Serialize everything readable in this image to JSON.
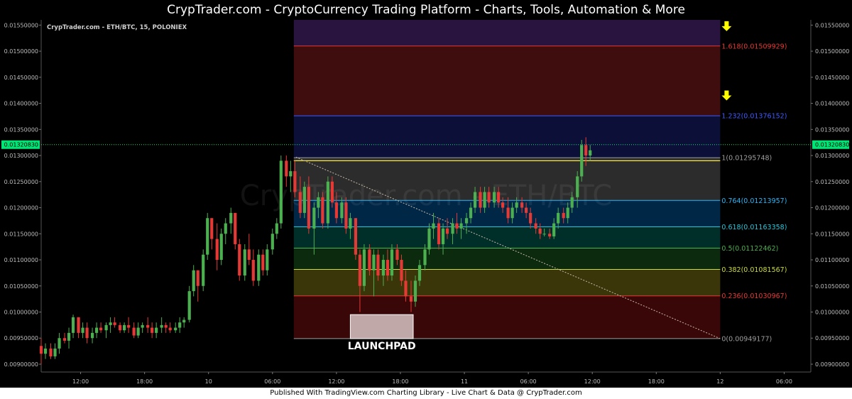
{
  "header": {
    "title": "CrypTrader.com  -  CryptoCurrency Trading Platform  -  Charts, Tools, Automation & More"
  },
  "footer": {
    "text": "Published With TradingView.com Charting Library - Live Chart & Data @ CrypTrader.com"
  },
  "colors": {
    "up": "#4caf50",
    "down": "#e53935",
    "accent": "#ffff00",
    "price_line": "#00e676"
  },
  "chart_data": {
    "type": "candlestick",
    "symbol_info": "CrypTrader.com - ETH/BTC, 15, POLONIEX",
    "watermark": "CrypTrader.com - ETH/BTC",
    "y_ticks": [
      "0.01550000",
      "0.01500000",
      "0.01450000",
      "0.01400000",
      "0.01350000",
      "0.01300000",
      "0.01250000",
      "0.01200000",
      "0.01150000",
      "0.01100000",
      "0.01050000",
      "0.01000000",
      "0.00950000",
      "0.00900000"
    ],
    "y_tick_values": [
      0.0155,
      0.015,
      0.0145,
      0.014,
      0.0135,
      0.013,
      0.0125,
      0.012,
      0.0115,
      0.011,
      0.0105,
      0.01,
      0.0095,
      0.009
    ],
    "ylim": [
      0.00885,
      0.0156
    ],
    "x_ticks": [
      {
        "label": "12:00",
        "t": 12
      },
      {
        "label": "18:00",
        "t": 18
      },
      {
        "label": "10",
        "t": 24
      },
      {
        "label": "06:00",
        "t": 30
      },
      {
        "label": "12:00",
        "t": 36
      },
      {
        "label": "18:00",
        "t": 42
      },
      {
        "label": "11",
        "t": 48
      },
      {
        "label": "06:00",
        "t": 54
      },
      {
        "label": "12:00",
        "t": 60
      },
      {
        "label": "18:00",
        "t": 66
      },
      {
        "label": "12",
        "t": 72
      },
      {
        "label": "06:00",
        "t": 78
      }
    ],
    "xlim": [
      8.3,
      80.5
    ],
    "current_price": {
      "label": "0.01320830",
      "value": 0.0132083
    },
    "fib_levels": [
      {
        "label": "1.618(0.01509929)",
        "value": 0.01509929,
        "color": "#e53935"
      },
      {
        "label": "1.232(0.01376152)",
        "value": 0.01376152,
        "color": "#3d5afe"
      },
      {
        "label": "1(0.01295748)",
        "value": 0.01295748,
        "color": "#9e9e9e"
      },
      {
        "label": "0.764(0.01213957)",
        "value": 0.01213957,
        "color": "#29b6f6"
      },
      {
        "label": "0.618(0.01163358)",
        "value": 0.01163358,
        "color": "#26c6da"
      },
      {
        "label": "0.5(0.01122462)",
        "value": 0.01122462,
        "color": "#4caf50"
      },
      {
        "label": "0.382(0.01081567)",
        "value": 0.01081567,
        "color": "#cddc39"
      },
      {
        "label": "0.236(0.01030967)",
        "value": 0.01030967,
        "color": "#e53935"
      },
      {
        "label": "0(0.00949177)",
        "value": 0.00949177,
        "color": "#9e9e9e"
      }
    ],
    "fib_zones": [
      {
        "top": 0.0156,
        "bottom": 0.01509929,
        "color": "#5b2a8c"
      },
      {
        "top": 0.01509929,
        "bottom": 0.01376152,
        "color": "#8b1c1c"
      },
      {
        "top": 0.01376152,
        "bottom": 0.01295748,
        "color": "#1a237e"
      },
      {
        "top": 0.01295748,
        "bottom": 0.01213957,
        "color": "#616161"
      },
      {
        "top": 0.01213957,
        "bottom": 0.01163358,
        "color": "#01579b"
      },
      {
        "top": 0.01163358,
        "bottom": 0.01122462,
        "color": "#00695c"
      },
      {
        "top": 0.01122462,
        "bottom": 0.01081567,
        "color": "#1b5e20"
      },
      {
        "top": 0.01081567,
        "bottom": 0.01030967,
        "color": "#827717"
      },
      {
        "top": 0.01030967,
        "bottom": 0.00949177,
        "color": "#7f1010"
      }
    ],
    "fib_x_range": [
      32.0,
      72.0
    ],
    "extra_line": {
      "value": 0.0129,
      "color": "#ffeb3b"
    },
    "trend_line": {
      "from": [
        32.2,
        0.01297
      ],
      "to": [
        72.0,
        0.00949
      ]
    },
    "launchpad": {
      "label": "LAUNCHPAD",
      "x": [
        37.3,
        43.2
      ],
      "y": [
        0.00949,
        0.00995
      ]
    },
    "arrows": [
      {
        "t": 72.6,
        "v": 0.01548
      },
      {
        "t": 72.6,
        "v": 0.01415
      }
    ],
    "candles": [
      [
        8.3,
        0.00935,
        0.0095,
        0.009,
        0.0092
      ],
      [
        8.7,
        0.0092,
        0.0094,
        0.0091,
        0.0093
      ],
      [
        9.2,
        0.0093,
        0.0094,
        0.0091,
        0.00915
      ],
      [
        9.6,
        0.00915,
        0.0094,
        0.0091,
        0.0093
      ],
      [
        10.0,
        0.0093,
        0.0096,
        0.0092,
        0.0095
      ],
      [
        10.5,
        0.0095,
        0.0096,
        0.0094,
        0.00945
      ],
      [
        10.9,
        0.00945,
        0.0097,
        0.0093,
        0.0096
      ],
      [
        11.3,
        0.0096,
        0.00995,
        0.0095,
        0.0099
      ],
      [
        11.8,
        0.0099,
        0.0099,
        0.0095,
        0.0096
      ],
      [
        12.2,
        0.0096,
        0.0098,
        0.0095,
        0.0097
      ],
      [
        12.6,
        0.0097,
        0.0098,
        0.0094,
        0.0095
      ],
      [
        13.1,
        0.0095,
        0.0097,
        0.0094,
        0.0096
      ],
      [
        13.5,
        0.0096,
        0.0098,
        0.0095,
        0.0097
      ],
      [
        13.9,
        0.0097,
        0.0098,
        0.0096,
        0.00965
      ],
      [
        14.4,
        0.00965,
        0.0098,
        0.0095,
        0.00975
      ],
      [
        14.8,
        0.00975,
        0.0099,
        0.0096,
        0.0098
      ],
      [
        15.2,
        0.0098,
        0.0099,
        0.0097,
        0.00975
      ],
      [
        15.7,
        0.00975,
        0.0098,
        0.0096,
        0.00965
      ],
      [
        16.1,
        0.00965,
        0.0098,
        0.0096,
        0.00975
      ],
      [
        16.5,
        0.00975,
        0.0099,
        0.0096,
        0.0097
      ],
      [
        17.0,
        0.0097,
        0.0098,
        0.0095,
        0.00955
      ],
      [
        17.4,
        0.00955,
        0.0098,
        0.0095,
        0.0097
      ],
      [
        17.8,
        0.0097,
        0.0098,
        0.0096,
        0.00975
      ],
      [
        18.3,
        0.00975,
        0.0099,
        0.0096,
        0.0097
      ],
      [
        18.7,
        0.0097,
        0.0098,
        0.0095,
        0.0096
      ],
      [
        19.1,
        0.0096,
        0.0098,
        0.0095,
        0.0097
      ],
      [
        19.6,
        0.0097,
        0.0099,
        0.0096,
        0.00975
      ],
      [
        20.0,
        0.00975,
        0.0098,
        0.0096,
        0.0097
      ],
      [
        20.4,
        0.0097,
        0.0098,
        0.0096,
        0.00965
      ],
      [
        20.9,
        0.00965,
        0.0098,
        0.0096,
        0.0097
      ],
      [
        21.3,
        0.0097,
        0.0099,
        0.0096,
        0.0098
      ],
      [
        21.7,
        0.0098,
        0.0099,
        0.0097,
        0.00985
      ],
      [
        22.2,
        0.00985,
        0.0105,
        0.0098,
        0.0104
      ],
      [
        22.6,
        0.0104,
        0.0109,
        0.0103,
        0.0108
      ],
      [
        23.0,
        0.0108,
        0.0108,
        0.0102,
        0.0105
      ],
      [
        23.5,
        0.0105,
        0.0112,
        0.0104,
        0.0111
      ],
      [
        23.9,
        0.0111,
        0.0119,
        0.011,
        0.0118
      ],
      [
        24.3,
        0.0118,
        0.0118,
        0.0112,
        0.0114
      ],
      [
        24.8,
        0.0114,
        0.0117,
        0.0108,
        0.011
      ],
      [
        25.2,
        0.011,
        0.0116,
        0.0109,
        0.0115
      ],
      [
        25.6,
        0.0115,
        0.0118,
        0.0113,
        0.0117
      ],
      [
        26.1,
        0.0117,
        0.012,
        0.0115,
        0.0119
      ],
      [
        26.5,
        0.0119,
        0.0119,
        0.0112,
        0.0113
      ],
      [
        26.9,
        0.0113,
        0.0114,
        0.0106,
        0.0107
      ],
      [
        27.4,
        0.0107,
        0.0113,
        0.0106,
        0.0112
      ],
      [
        27.8,
        0.0112,
        0.0115,
        0.0109,
        0.011
      ],
      [
        28.2,
        0.011,
        0.0112,
        0.0105,
        0.0106
      ],
      [
        28.7,
        0.0106,
        0.0112,
        0.0105,
        0.0111
      ],
      [
        29.1,
        0.0111,
        0.0112,
        0.0107,
        0.0108
      ],
      [
        29.5,
        0.0108,
        0.0113,
        0.0107,
        0.0112
      ],
      [
        30.0,
        0.0112,
        0.0116,
        0.0111,
        0.0115
      ],
      [
        30.4,
        0.0115,
        0.0118,
        0.0114,
        0.0117
      ],
      [
        30.8,
        0.0117,
        0.013,
        0.0116,
        0.0129
      ],
      [
        31.3,
        0.0129,
        0.013,
        0.0124,
        0.0126
      ],
      [
        31.7,
        0.0126,
        0.0129,
        0.0123,
        0.0127
      ],
      [
        32.1,
        0.0127,
        0.0129,
        0.0122,
        0.0123
      ],
      [
        32.6,
        0.0123,
        0.0126,
        0.0118,
        0.0119
      ],
      [
        33.0,
        0.0119,
        0.0125,
        0.0118,
        0.0124
      ],
      [
        33.4,
        0.0124,
        0.0126,
        0.0115,
        0.0116
      ],
      [
        33.9,
        0.0116,
        0.0121,
        0.0111,
        0.012
      ],
      [
        34.3,
        0.012,
        0.0123,
        0.0118,
        0.0122
      ],
      [
        34.7,
        0.0122,
        0.0123,
        0.0116,
        0.0117
      ],
      [
        35.2,
        0.0117,
        0.0126,
        0.0116,
        0.0125
      ],
      [
        35.6,
        0.0125,
        0.0126,
        0.012,
        0.0121
      ],
      [
        36.0,
        0.0121,
        0.0123,
        0.0117,
        0.0118
      ],
      [
        36.5,
        0.0118,
        0.0122,
        0.0117,
        0.0121
      ],
      [
        36.9,
        0.0121,
        0.0122,
        0.0115,
        0.0116
      ],
      [
        37.3,
        0.0116,
        0.0119,
        0.0114,
        0.0118
      ],
      [
        37.8,
        0.0118,
        0.0118,
        0.011,
        0.0111
      ],
      [
        38.2,
        0.0111,
        0.0112,
        0.01,
        0.0105
      ],
      [
        38.6,
        0.0105,
        0.0113,
        0.0104,
        0.0112
      ],
      [
        39.1,
        0.0112,
        0.0113,
        0.0107,
        0.0108
      ],
      [
        39.5,
        0.0108,
        0.0112,
        0.0103,
        0.0111
      ],
      [
        39.9,
        0.0111,
        0.0112,
        0.0106,
        0.0107
      ],
      [
        40.4,
        0.0107,
        0.0111,
        0.0105,
        0.011
      ],
      [
        40.8,
        0.011,
        0.0112,
        0.0106,
        0.0107
      ],
      [
        41.2,
        0.0107,
        0.0113,
        0.0106,
        0.0112
      ],
      [
        41.7,
        0.0112,
        0.0113,
        0.0109,
        0.011
      ],
      [
        42.1,
        0.011,
        0.0111,
        0.0105,
        0.0106
      ],
      [
        42.5,
        0.0106,
        0.0108,
        0.0102,
        0.0103
      ],
      [
        43.0,
        0.0103,
        0.0106,
        0.01,
        0.0102
      ],
      [
        43.4,
        0.0102,
        0.0107,
        0.0101,
        0.0106
      ],
      [
        43.8,
        0.0106,
        0.011,
        0.0105,
        0.0109
      ],
      [
        44.3,
        0.0109,
        0.0113,
        0.0108,
        0.0112
      ],
      [
        44.7,
        0.0112,
        0.0117,
        0.0111,
        0.0116
      ],
      [
        45.1,
        0.0116,
        0.0119,
        0.0114,
        0.0117
      ],
      [
        45.6,
        0.0117,
        0.0118,
        0.0112,
        0.0113
      ],
      [
        46.0,
        0.0113,
        0.0117,
        0.0111,
        0.0116
      ],
      [
        46.4,
        0.0116,
        0.0118,
        0.0114,
        0.0115
      ],
      [
        46.9,
        0.0115,
        0.0118,
        0.0113,
        0.0117
      ],
      [
        47.3,
        0.0117,
        0.0119,
        0.0115,
        0.0116
      ],
      [
        47.7,
        0.0116,
        0.0118,
        0.0114,
        0.0117
      ],
      [
        48.2,
        0.0117,
        0.0119,
        0.0115,
        0.0118
      ],
      [
        48.6,
        0.0118,
        0.0121,
        0.0117,
        0.012
      ],
      [
        49.0,
        0.012,
        0.0124,
        0.0119,
        0.0123
      ],
      [
        49.5,
        0.0123,
        0.0124,
        0.0119,
        0.012
      ],
      [
        49.9,
        0.012,
        0.0124,
        0.0119,
        0.0123
      ],
      [
        50.3,
        0.0123,
        0.0124,
        0.012,
        0.0121
      ],
      [
        50.8,
        0.0121,
        0.0124,
        0.012,
        0.0123
      ],
      [
        51.2,
        0.0123,
        0.0124,
        0.012,
        0.0121
      ],
      [
        51.6,
        0.0121,
        0.0122,
        0.0119,
        0.012
      ],
      [
        52.1,
        0.012,
        0.0122,
        0.0117,
        0.0118
      ],
      [
        52.5,
        0.0118,
        0.0121,
        0.0117,
        0.012
      ],
      [
        52.9,
        0.012,
        0.0122,
        0.0119,
        0.0121
      ],
      [
        53.4,
        0.0121,
        0.0122,
        0.0119,
        0.012
      ],
      [
        53.8,
        0.012,
        0.0121,
        0.0118,
        0.0119
      ],
      [
        54.2,
        0.0119,
        0.012,
        0.0116,
        0.0117
      ],
      [
        54.7,
        0.0117,
        0.0118,
        0.0115,
        0.0116
      ],
      [
        55.1,
        0.0116,
        0.0117,
        0.0114,
        0.0115
      ],
      [
        55.5,
        0.0115,
        0.0116,
        0.01145,
        0.0115
      ],
      [
        56.0,
        0.0115,
        0.0116,
        0.0114,
        0.01145
      ],
      [
        56.4,
        0.01145,
        0.0118,
        0.0114,
        0.0117
      ],
      [
        56.8,
        0.0117,
        0.012,
        0.0116,
        0.0119
      ],
      [
        57.3,
        0.0119,
        0.012,
        0.0117,
        0.0118
      ],
      [
        57.7,
        0.0118,
        0.0121,
        0.0117,
        0.012
      ],
      [
        58.1,
        0.012,
        0.0123,
        0.0119,
        0.0122
      ],
      [
        58.6,
        0.0122,
        0.0127,
        0.012,
        0.0126
      ],
      [
        59.0,
        0.0126,
        0.0133,
        0.0125,
        0.0132
      ],
      [
        59.4,
        0.0132,
        0.01335,
        0.0128,
        0.013
      ],
      [
        59.8,
        0.013,
        0.0132,
        0.0129,
        0.0131
      ]
    ]
  }
}
